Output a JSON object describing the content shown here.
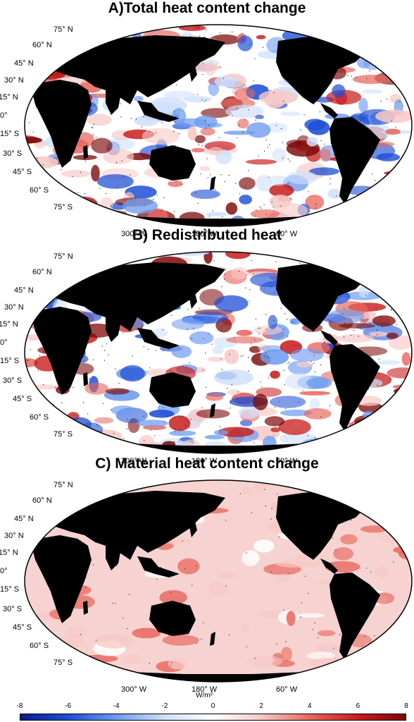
{
  "colors": {
    "scale": [
      "#0a1a8c",
      "#1e4fd6",
      "#6f9cf0",
      "#cfe0fb",
      "#ffffff",
      "#f7c9c6",
      "#e8675e",
      "#c81d1d",
      "#7d0707"
    ],
    "land": "#000000",
    "panel_c_base": "#f6d3d0"
  },
  "panels": [
    {
      "title": "A)Total heat content change",
      "lat_labels": [
        "75° N",
        "60° N",
        "45° N",
        "30° N",
        "15° N",
        "0°",
        "15° S",
        "30° S",
        "45° S",
        "60° S",
        "75° S"
      ],
      "lon_labels": [
        "300° W",
        "180° W",
        "60° W"
      ]
    },
    {
      "title": "B) Redistributed heat",
      "lat_labels": [
        "75° N",
        "60° N",
        "45° N",
        "30° N",
        "15° N",
        "0°",
        "15° S",
        "30° S",
        "45° S",
        "60° S",
        "75° S"
      ],
      "lon_labels": [
        "300° W",
        "180° W",
        "60° W"
      ]
    },
    {
      "title": "C) Material heat content change",
      "lat_labels": [
        "75° N",
        "60° N",
        "45° N",
        "30° N",
        "15° N",
        "0°",
        "15° S",
        "30° S",
        "45° S",
        "60° S",
        "75° S"
      ],
      "lon_labels": [
        "300° W",
        "180° W",
        "60° W"
      ]
    }
  ],
  "colorbar": {
    "unit": "W/m²",
    "ticks": [
      "-8",
      "-6",
      "-4",
      "-2",
      "0",
      "2",
      "4",
      "6",
      "8"
    ],
    "min": -8,
    "max": 8
  }
}
